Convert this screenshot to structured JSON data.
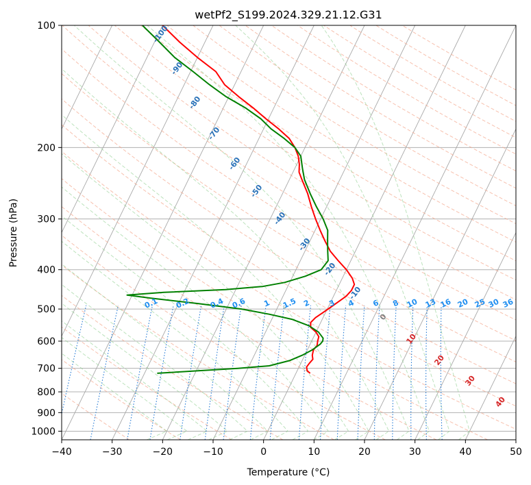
{
  "chart_data": {
    "type": "line",
    "title": "wetPf2_S199.2024.329.21.12.G31",
    "xlabel": "Temperature (°C)",
    "ylabel": "Pressure (hPa)",
    "xlim": [
      -40,
      50
    ],
    "ylim": [
      1050,
      100
    ],
    "y_scale": "log",
    "grid": true,
    "x_ticks": [
      "−40",
      "−30",
      "−20",
      "−10",
      "0",
      "10",
      "20",
      "30",
      "40",
      "50"
    ],
    "x_tick_values": [
      -40,
      -30,
      -20,
      -10,
      0,
      10,
      20,
      30,
      40,
      50
    ],
    "y_ticks": [
      "100",
      "200",
      "300",
      "400",
      "500",
      "600",
      "700",
      "800",
      "900",
      "1000"
    ],
    "y_tick_values": [
      100,
      200,
      300,
      400,
      500,
      600,
      700,
      800,
      900,
      1000
    ],
    "skew_factor": 40,
    "dry_adiabat_labels": [
      "-100",
      "-90",
      "-80",
      "-70",
      "-60",
      "-50",
      "-40",
      "-30",
      "-20",
      "-10"
    ],
    "moist_adiabat_labels": [
      "0",
      "10",
      "20",
      "30",
      "40"
    ],
    "mixing_ratio_labels": [
      "0.1",
      "0.2",
      "0.4",
      "0.6",
      "1",
      "1.5",
      "2",
      "3",
      "4",
      "6",
      "8",
      "10",
      "13",
      "16",
      "20",
      "25",
      "30",
      "36"
    ],
    "mixing_ratio_values": [
      0.1,
      0.2,
      0.4,
      0.6,
      1,
      1.5,
      2,
      3,
      4,
      6,
      8,
      10,
      13,
      16,
      20,
      25,
      30,
      36
    ],
    "series": [
      {
        "color": "#ff0000",
        "points": [
          [
            720,
            2.8
          ],
          [
            710,
            2.0
          ],
          [
            695,
            1.5
          ],
          [
            680,
            1.7
          ],
          [
            665,
            2.0
          ],
          [
            650,
            1.5
          ],
          [
            630,
            1.2
          ],
          [
            615,
            1.5
          ],
          [
            600,
            1.2
          ],
          [
            585,
            1.0
          ],
          [
            570,
            0.0
          ],
          [
            555,
            -1.5
          ],
          [
            540,
            -2.0
          ],
          [
            525,
            -1.5
          ],
          [
            510,
            -0.5
          ],
          [
            495,
            0.5
          ],
          [
            480,
            1.5
          ],
          [
            465,
            2.5
          ],
          [
            450,
            3.0
          ],
          [
            435,
            3.0
          ],
          [
            420,
            2.0
          ],
          [
            400,
            0.0
          ],
          [
            380,
            -2.5
          ],
          [
            360,
            -5.0
          ],
          [
            340,
            -7.0
          ],
          [
            320,
            -9.0
          ],
          [
            300,
            -11.0
          ],
          [
            280,
            -13.0
          ],
          [
            260,
            -15.0
          ],
          [
            240,
            -17.5
          ],
          [
            230,
            -18.8
          ],
          [
            220,
            -19.5
          ],
          [
            210,
            -20.5
          ],
          [
            200,
            -22.0
          ],
          [
            190,
            -24.0
          ],
          [
            180,
            -27.0
          ],
          [
            170,
            -30.5
          ],
          [
            160,
            -34.0
          ],
          [
            150,
            -38.0
          ],
          [
            140,
            -42.0
          ],
          [
            130,
            -45.0
          ],
          [
            120,
            -50.0
          ],
          [
            110,
            -55.0
          ],
          [
            100,
            -60.0
          ]
        ]
      },
      {
        "color": "#008000",
        "points": [
          [
            720,
            -27.5
          ],
          [
            700,
            -12.0
          ],
          [
            690,
            -6.0
          ],
          [
            670,
            -2.5
          ],
          [
            650,
            -0.5
          ],
          [
            630,
            1.0
          ],
          [
            610,
            2.0
          ],
          [
            600,
            2.2
          ],
          [
            590,
            2.0
          ],
          [
            570,
            0.5
          ],
          [
            550,
            -2.0
          ],
          [
            530,
            -6.0
          ],
          [
            515,
            -11.0
          ],
          [
            500,
            -17.0
          ],
          [
            485,
            -26.0
          ],
          [
            470,
            -36.0
          ],
          [
            462,
            -41.0
          ],
          [
            455,
            -34.0
          ],
          [
            448,
            -22.0
          ],
          [
            440,
            -15.0
          ],
          [
            430,
            -11.0
          ],
          [
            415,
            -7.5
          ],
          [
            400,
            -5.0
          ],
          [
            380,
            -4.5
          ],
          [
            360,
            -5.5
          ],
          [
            340,
            -6.5
          ],
          [
            320,
            -7.5
          ],
          [
            300,
            -9.5
          ],
          [
            280,
            -12.0
          ],
          [
            260,
            -14.5
          ],
          [
            240,
            -17.0
          ],
          [
            225,
            -18.5
          ],
          [
            210,
            -20.0
          ],
          [
            200,
            -22.0
          ],
          [
            190,
            -25.0
          ],
          [
            180,
            -28.5
          ],
          [
            170,
            -31.5
          ],
          [
            160,
            -35.5
          ],
          [
            150,
            -40.5
          ],
          [
            140,
            -45.0
          ],
          [
            130,
            -49.5
          ],
          [
            120,
            -54.5
          ],
          [
            110,
            -59.0
          ],
          [
            100,
            -64.0
          ]
        ]
      }
    ]
  }
}
